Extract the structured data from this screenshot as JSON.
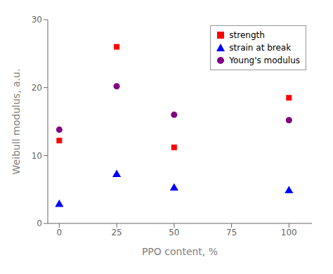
{
  "chart_data": {
    "type": "scatter",
    "xlabel": "PPO content, %",
    "ylabel": "Weibull modulus, a.u.",
    "x": [
      0,
      25,
      50,
      100
    ],
    "series": [
      {
        "name": "strength",
        "color": "#ff0000",
        "marker": "square",
        "values": [
          12.2,
          26.0,
          11.2,
          18.5
        ]
      },
      {
        "name": "strain at break",
        "color": "#0000ff",
        "marker": "triangle",
        "values": [
          2.8,
          7.2,
          5.2,
          4.8
        ]
      },
      {
        "name": "Young's modulus",
        "color": "#800080",
        "marker": "circle",
        "values": [
          13.8,
          20.2,
          16.0,
          15.2
        ]
      }
    ],
    "xlim": [
      -5,
      110
    ],
    "xticks": [
      0,
      25,
      50,
      75,
      100
    ],
    "ylim": [
      0,
      30
    ],
    "yticks": [
      0,
      10,
      20,
      30
    ],
    "grid": false,
    "legend": "upper right"
  }
}
